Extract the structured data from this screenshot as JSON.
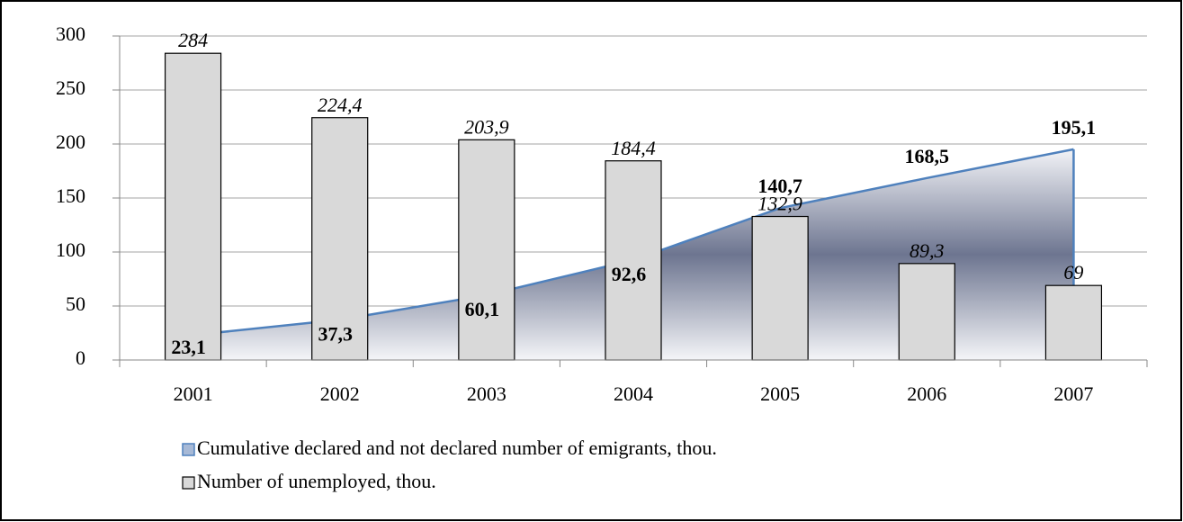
{
  "chart_data": {
    "type": "bar",
    "categories": [
      "2001",
      "2002",
      "2003",
      "2004",
      "2005",
      "2006",
      "2007"
    ],
    "series": [
      {
        "name": "Cumulative declared and not declared number of emigrants, thou.",
        "type": "area",
        "color": "#4f81bd",
        "values": [
          23.1,
          37.3,
          60.1,
          92.6,
          140.7,
          168.5,
          195.1
        ],
        "value_labels": [
          "23,1",
          "37,3",
          "60,1",
          "92,6",
          "140,7",
          "168,5",
          "195,1"
        ]
      },
      {
        "name": "Number of unemployed, thou.",
        "type": "bar",
        "color": "#d9d9d9",
        "values": [
          284,
          224.4,
          203.9,
          184.4,
          132.9,
          89.3,
          69
        ],
        "value_labels": [
          "284",
          "224,4",
          "203,9",
          "184,4",
          "132,9",
          "89,3",
          "69"
        ]
      }
    ],
    "ylim": [
      0,
      300
    ],
    "yticks": [
      0,
      50,
      100,
      150,
      200,
      250,
      300
    ],
    "grid": true
  }
}
